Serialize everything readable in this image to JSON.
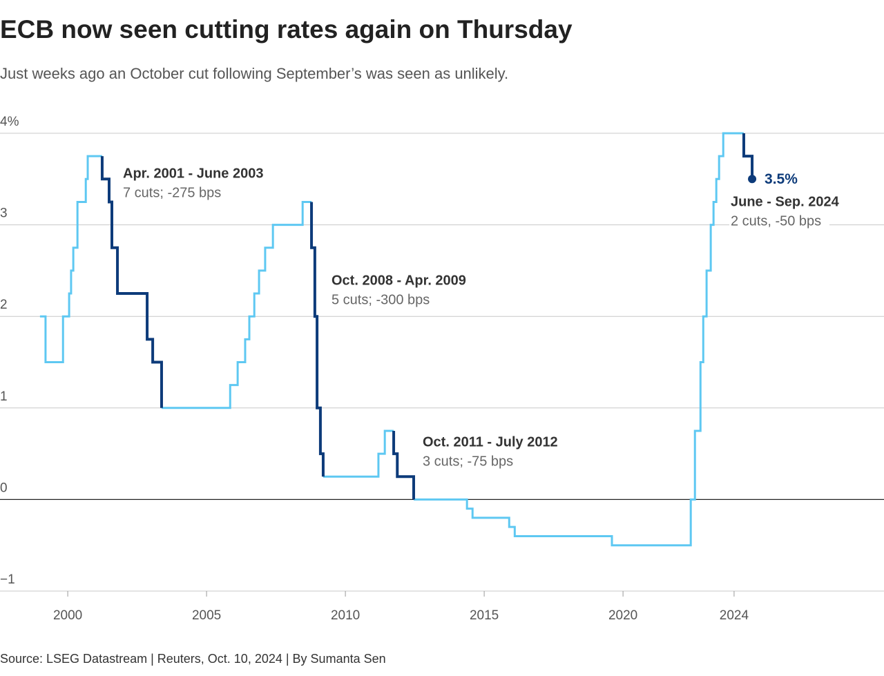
{
  "chart_data": {
    "type": "step-line",
    "title": "ECB now seen cutting rates again on Thursday",
    "subtitle": "Just weeks ago an October cut following September’s was seen as unlikely.",
    "source": "Source: LSEG Datastream | Reuters, Oct. 10, 2024 | By Sumanta Sen",
    "xlim": [
      1997.56,
      2029.4
    ],
    "ylim": [
      -1,
      4
    ],
    "xticks": [
      2000,
      2005,
      2010,
      2015,
      2020,
      2024
    ],
    "yticks": [
      {
        "value": 4,
        "label": "4%"
      },
      3,
      2,
      1,
      0,
      {
        "value": -1,
        "label": "−1"
      }
    ],
    "grid": true,
    "series": [
      {
        "color": "#5ec8f2",
        "x": [
          1999.0,
          1999.2,
          1999.83,
          2000.05,
          2000.12,
          2000.2,
          2000.35,
          2000.65,
          2000.72,
          2001.24,
          null,
          2003.38,
          2005.85,
          2006.12,
          2006.39,
          2006.54,
          2006.72,
          2006.89,
          2007.11,
          2007.39,
          2008.46,
          2008.78,
          null,
          2009.2,
          2011.19,
          2011.42,
          2011.74,
          null,
          2012.46,
          2014.38,
          2014.58,
          2015.9,
          2016.1,
          2019.6,
          2022.44,
          2022.59,
          2022.79,
          2022.89,
          2023.01,
          2023.16,
          2023.26,
          2023.36,
          2023.46,
          2023.61,
          2024.35
        ],
        "values": [
          2.0,
          1.5,
          2.0,
          2.25,
          2.5,
          2.75,
          3.25,
          3.5,
          3.75,
          3.75,
          null,
          1.0,
          1.25,
          1.5,
          1.75,
          2.0,
          2.25,
          2.5,
          2.75,
          3.0,
          3.25,
          3.25,
          null,
          0.25,
          0.5,
          0.75,
          0.75,
          null,
          0,
          -0.1,
          -0.2,
          -0.3,
          -0.4,
          -0.5,
          0,
          0.75,
          1.5,
          2.0,
          2.5,
          3.0,
          3.25,
          3.5,
          3.75,
          4.0,
          4.0
        ]
      },
      {
        "color": "#0d3b7a",
        "x": [
          2001.24,
          2001.24,
          2001.49,
          2001.59,
          2001.79,
          2002.86,
          2003.06,
          2003.38,
          null,
          2008.78,
          2008.78,
          2008.9,
          2008.98,
          2009.1,
          2009.2,
          null,
          2011.74,
          2011.74,
          2011.87,
          2012.46,
          null,
          2024.35,
          2024.35,
          2024.65
        ],
        "values": [
          3.75,
          3.5,
          3.25,
          2.75,
          2.25,
          1.75,
          1.5,
          1.0,
          null,
          3.25,
          2.75,
          2.0,
          1.0,
          0.5,
          0.25,
          null,
          0.75,
          0.5,
          0.25,
          0,
          null,
          4.0,
          3.75,
          3.5
        ],
        "value_labels": [
          null,
          null,
          null,
          null,
          null,
          null,
          null,
          null,
          null,
          null,
          null,
          null,
          null,
          null,
          null,
          null,
          null,
          null,
          null,
          null,
          null,
          null,
          null,
          "3.5%"
        ]
      }
    ],
    "annotations": [
      {
        "title": "Apr. 2001 - June 2003",
        "text": "7 cuts; -275 bps"
      },
      {
        "title": "Oct. 2008 - Apr. 2009",
        "text": "5 cuts; -300 bps"
      },
      {
        "title": "Oct. 2011 - July 2012",
        "text": "3 cuts; -75 bps"
      },
      {
        "title": "June - Sep. 2024",
        "text": "2 cuts, -50 bps"
      }
    ]
  }
}
